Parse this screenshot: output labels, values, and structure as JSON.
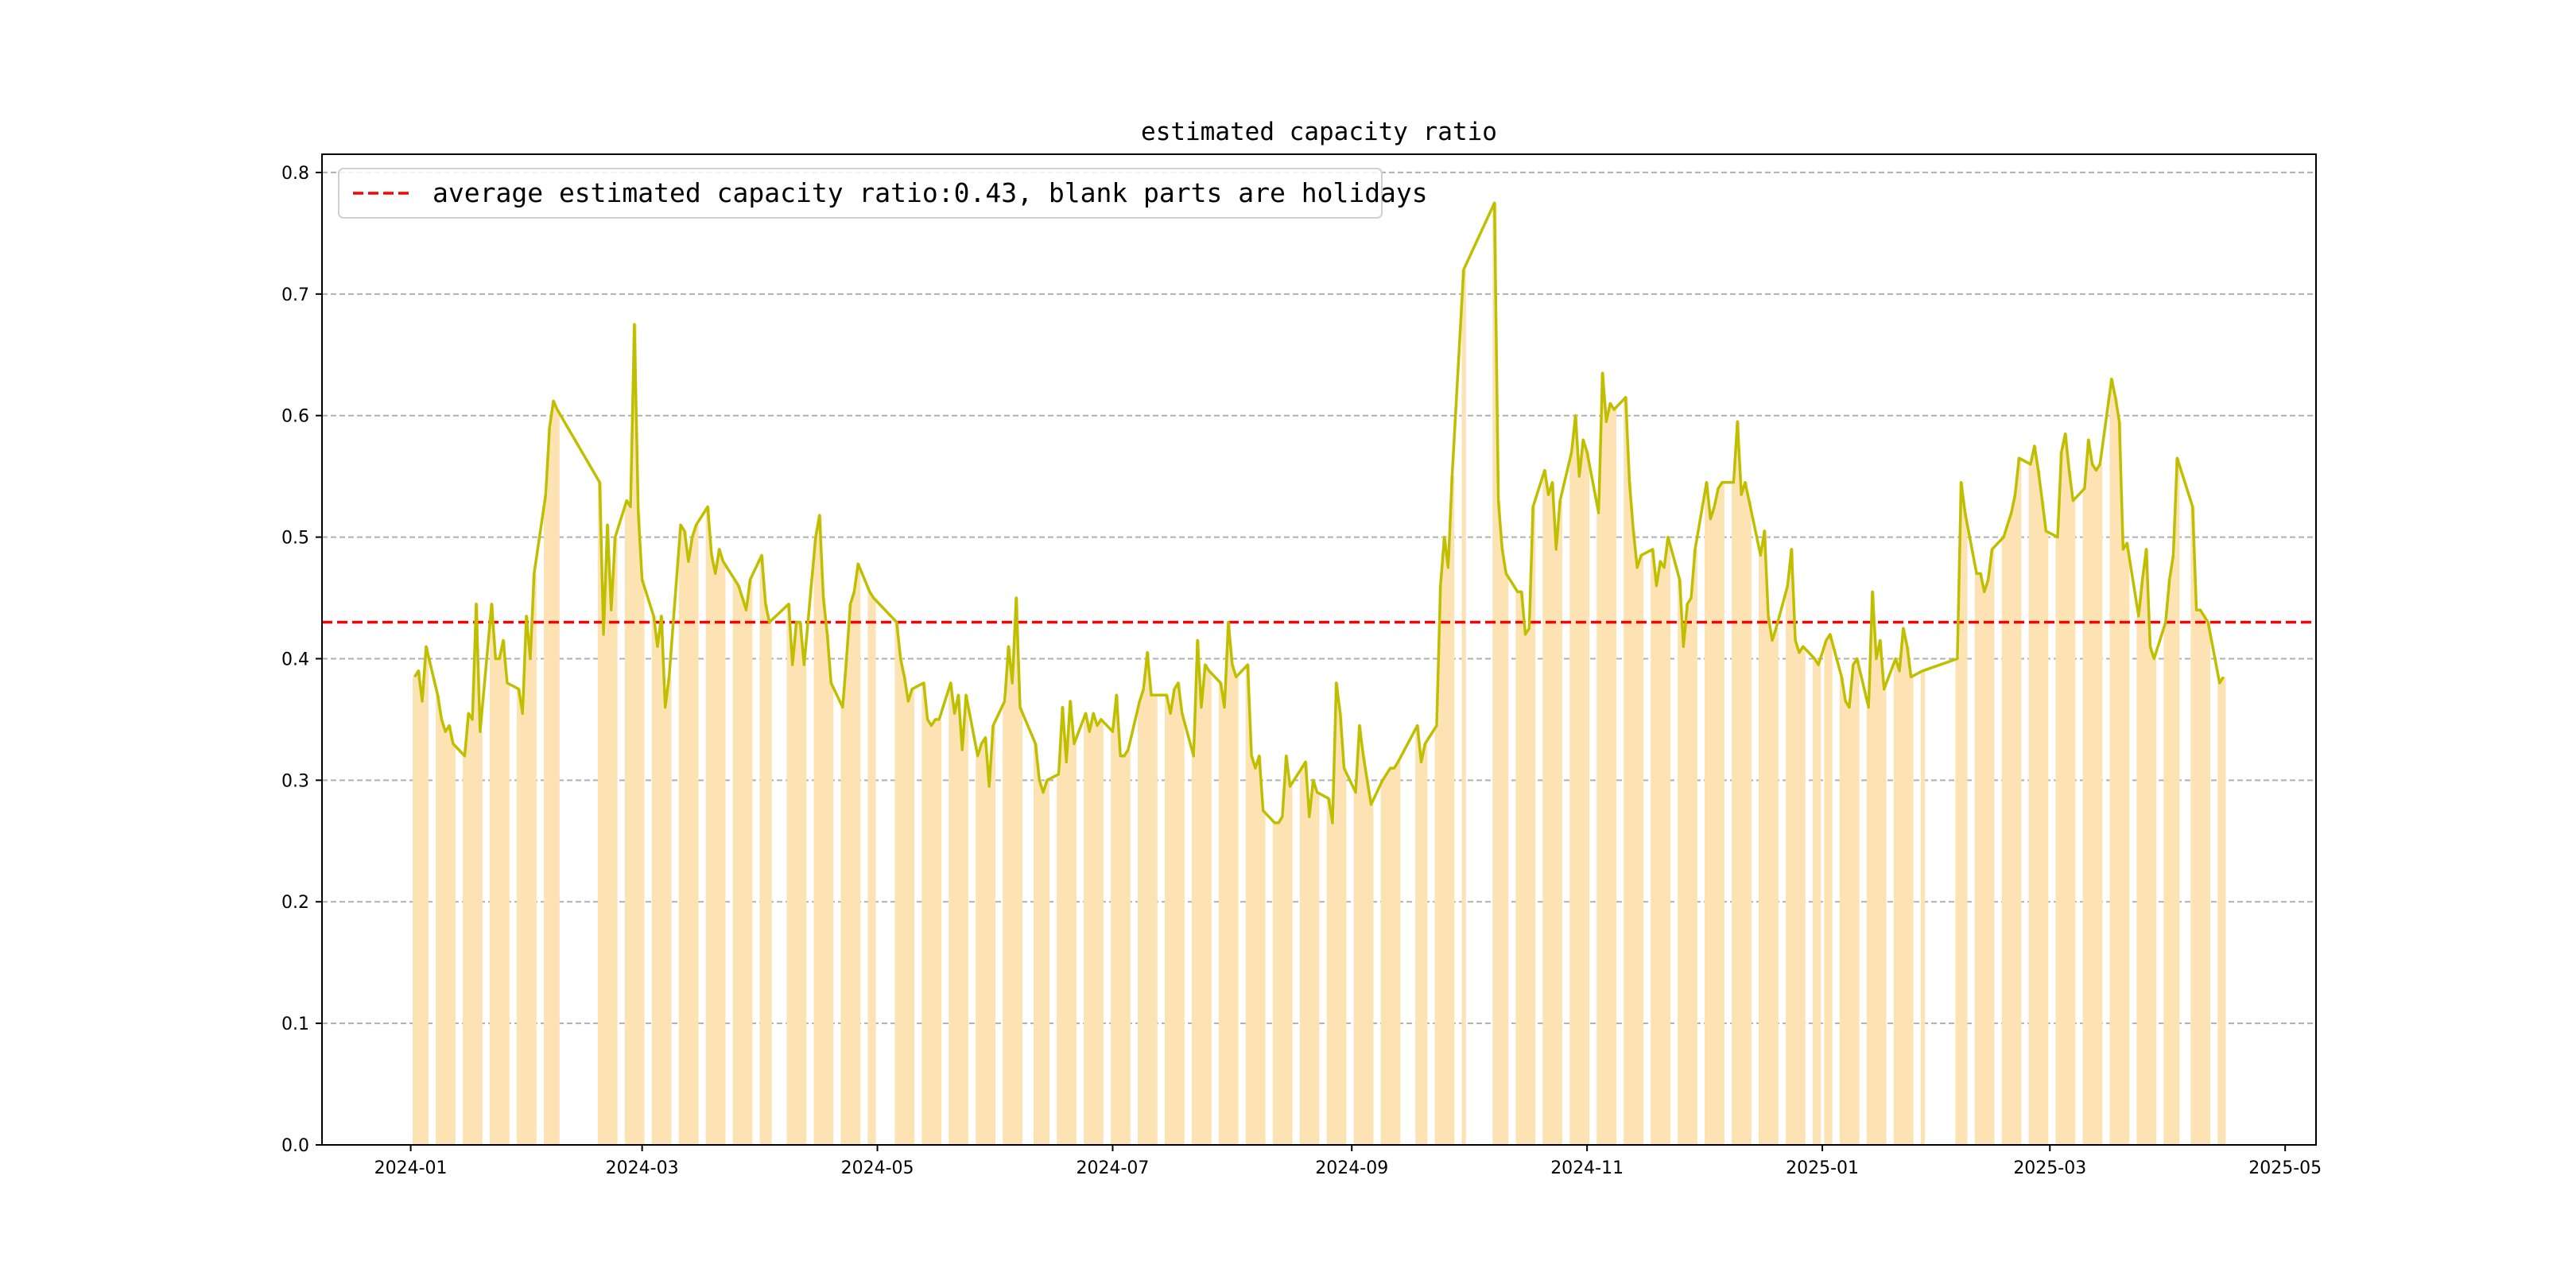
{
  "chart_data": {
    "type": "bar+line",
    "title": "estimated capacity ratio",
    "xlabel": "",
    "ylabel": "",
    "ylim": [
      0,
      0.815
    ],
    "xlim": [
      "2023-12-09",
      "2025-05-09"
    ],
    "grid": "y-dashed",
    "legend_placement": "top-left",
    "legend": [
      "average estimated capacity ratio:0.43, blank parts are holidays"
    ],
    "average": 0.43,
    "colors": {
      "line": "#bfbf00",
      "bar": "#fde2b4",
      "average": "#ff0000",
      "grid": "#b0b0b0"
    },
    "x_ticks": [
      "2024-01",
      "2024-03",
      "2024-05",
      "2024-07",
      "2024-09",
      "2024-11",
      "2025-01",
      "2025-03",
      "2025-05"
    ],
    "y_ticks": [
      "0.0",
      "0.1",
      "0.2",
      "0.3",
      "0.4",
      "0.5",
      "0.6",
      "0.7",
      "0.8"
    ],
    "series": [
      [
        "2024-01-02",
        0.385
      ],
      [
        "2024-01-03",
        0.39
      ],
      [
        "2024-01-04",
        0.365
      ],
      [
        "2024-01-05",
        0.41
      ],
      [
        "2024-01-08",
        0.37
      ],
      [
        "2024-01-09",
        0.35
      ],
      [
        "2024-01-10",
        0.34
      ],
      [
        "2024-01-11",
        0.345
      ],
      [
        "2024-01-12",
        0.33
      ],
      [
        "2024-01-15",
        0.32
      ],
      [
        "2024-01-16",
        0.355
      ],
      [
        "2024-01-17",
        0.35
      ],
      [
        "2024-01-18",
        0.445
      ],
      [
        "2024-01-19",
        0.34
      ],
      [
        "2024-01-22",
        0.445
      ],
      [
        "2024-01-23",
        0.4
      ],
      [
        "2024-01-24",
        0.4
      ],
      [
        "2024-01-25",
        0.415
      ],
      [
        "2024-01-26",
        0.38
      ],
      [
        "2024-01-29",
        0.375
      ],
      [
        "2024-01-30",
        0.355
      ],
      [
        "2024-01-31",
        0.435
      ],
      [
        "2024-02-01",
        0.4
      ],
      [
        "2024-02-02",
        0.47
      ],
      [
        "2024-02-05",
        0.535
      ],
      [
        "2024-02-06",
        0.59
      ],
      [
        "2024-02-07",
        0.612
      ],
      [
        "2024-02-08",
        0.605
      ],
      [
        "2024-02-19",
        0.545
      ],
      [
        "2024-02-20",
        0.42
      ],
      [
        "2024-02-21",
        0.51
      ],
      [
        "2024-02-22",
        0.44
      ],
      [
        "2024-02-23",
        0.5
      ],
      [
        "2024-02-26",
        0.53
      ],
      [
        "2024-02-27",
        0.525
      ],
      [
        "2024-02-28",
        0.675
      ],
      [
        "2024-02-29",
        0.52
      ],
      [
        "2024-03-01",
        0.465
      ],
      [
        "2024-03-04",
        0.435
      ],
      [
        "2024-03-05",
        0.41
      ],
      [
        "2024-03-06",
        0.435
      ],
      [
        "2024-03-07",
        0.36
      ],
      [
        "2024-03-08",
        0.385
      ],
      [
        "2024-03-11",
        0.51
      ],
      [
        "2024-03-12",
        0.505
      ],
      [
        "2024-03-13",
        0.48
      ],
      [
        "2024-03-14",
        0.5
      ],
      [
        "2024-03-15",
        0.51
      ],
      [
        "2024-03-18",
        0.525
      ],
      [
        "2024-03-19",
        0.485
      ],
      [
        "2024-03-20",
        0.47
      ],
      [
        "2024-03-21",
        0.49
      ],
      [
        "2024-03-22",
        0.48
      ],
      [
        "2024-03-25",
        0.465
      ],
      [
        "2024-03-26",
        0.46
      ],
      [
        "2024-03-27",
        0.45
      ],
      [
        "2024-03-28",
        0.44
      ],
      [
        "2024-03-29",
        0.465
      ],
      [
        "2024-04-01",
        0.485
      ],
      [
        "2024-04-02",
        0.445
      ],
      [
        "2024-04-03",
        0.43
      ],
      [
        "2024-04-08",
        0.445
      ],
      [
        "2024-04-09",
        0.395
      ],
      [
        "2024-04-10",
        0.43
      ],
      [
        "2024-04-11",
        0.43
      ],
      [
        "2024-04-12",
        0.395
      ],
      [
        "2024-04-15",
        0.5
      ],
      [
        "2024-04-16",
        0.518
      ],
      [
        "2024-04-17",
        0.45
      ],
      [
        "2024-04-18",
        0.42
      ],
      [
        "2024-04-19",
        0.38
      ],
      [
        "2024-04-22",
        0.36
      ],
      [
        "2024-04-23",
        0.4
      ],
      [
        "2024-04-24",
        0.445
      ],
      [
        "2024-04-25",
        0.455
      ],
      [
        "2024-04-26",
        0.478
      ],
      [
        "2024-04-29",
        0.455
      ],
      [
        "2024-04-30",
        0.45
      ],
      [
        "2024-05-06",
        0.43
      ],
      [
        "2024-05-07",
        0.4
      ],
      [
        "2024-05-08",
        0.385
      ],
      [
        "2024-05-09",
        0.365
      ],
      [
        "2024-05-10",
        0.375
      ],
      [
        "2024-05-13",
        0.38
      ],
      [
        "2024-05-14",
        0.35
      ],
      [
        "2024-05-15",
        0.345
      ],
      [
        "2024-05-16",
        0.35
      ],
      [
        "2024-05-17",
        0.35
      ],
      [
        "2024-05-20",
        0.38
      ],
      [
        "2024-05-21",
        0.355
      ],
      [
        "2024-05-22",
        0.37
      ],
      [
        "2024-05-23",
        0.325
      ],
      [
        "2024-05-24",
        0.37
      ],
      [
        "2024-05-27",
        0.32
      ],
      [
        "2024-05-28",
        0.33
      ],
      [
        "2024-05-29",
        0.335
      ],
      [
        "2024-05-30",
        0.295
      ],
      [
        "2024-05-31",
        0.345
      ],
      [
        "2024-06-03",
        0.365
      ],
      [
        "2024-06-04",
        0.41
      ],
      [
        "2024-06-05",
        0.38
      ],
      [
        "2024-06-06",
        0.45
      ],
      [
        "2024-06-07",
        0.36
      ],
      [
        "2024-06-11",
        0.33
      ],
      [
        "2024-06-12",
        0.3
      ],
      [
        "2024-06-13",
        0.29
      ],
      [
        "2024-06-14",
        0.3
      ],
      [
        "2024-06-17",
        0.305
      ],
      [
        "2024-06-18",
        0.36
      ],
      [
        "2024-06-19",
        0.315
      ],
      [
        "2024-06-20",
        0.365
      ],
      [
        "2024-06-21",
        0.33
      ],
      [
        "2024-06-24",
        0.355
      ],
      [
        "2024-06-25",
        0.34
      ],
      [
        "2024-06-26",
        0.355
      ],
      [
        "2024-06-27",
        0.345
      ],
      [
        "2024-06-28",
        0.35
      ],
      [
        "2024-07-01",
        0.34
      ],
      [
        "2024-07-02",
        0.37
      ],
      [
        "2024-07-03",
        0.32
      ],
      [
        "2024-07-04",
        0.32
      ],
      [
        "2024-07-05",
        0.325
      ],
      [
        "2024-07-08",
        0.365
      ],
      [
        "2024-07-09",
        0.375
      ],
      [
        "2024-07-10",
        0.405
      ],
      [
        "2024-07-11",
        0.37
      ],
      [
        "2024-07-12",
        0.37
      ],
      [
        "2024-07-15",
        0.37
      ],
      [
        "2024-07-16",
        0.355
      ],
      [
        "2024-07-17",
        0.375
      ],
      [
        "2024-07-18",
        0.38
      ],
      [
        "2024-07-19",
        0.355
      ],
      [
        "2024-07-22",
        0.32
      ],
      [
        "2024-07-23",
        0.415
      ],
      [
        "2024-07-24",
        0.36
      ],
      [
        "2024-07-25",
        0.395
      ],
      [
        "2024-07-26",
        0.39
      ],
      [
        "2024-07-29",
        0.38
      ],
      [
        "2024-07-30",
        0.36
      ],
      [
        "2024-07-31",
        0.43
      ],
      [
        "2024-08-01",
        0.395
      ],
      [
        "2024-08-02",
        0.385
      ],
      [
        "2024-08-05",
        0.395
      ],
      [
        "2024-08-06",
        0.32
      ],
      [
        "2024-08-07",
        0.31
      ],
      [
        "2024-08-08",
        0.32
      ],
      [
        "2024-08-09",
        0.275
      ],
      [
        "2024-08-12",
        0.265
      ],
      [
        "2024-08-13",
        0.265
      ],
      [
        "2024-08-14",
        0.27
      ],
      [
        "2024-08-15",
        0.32
      ],
      [
        "2024-08-16",
        0.295
      ],
      [
        "2024-08-19",
        0.31
      ],
      [
        "2024-08-20",
        0.315
      ],
      [
        "2024-08-21",
        0.27
      ],
      [
        "2024-08-22",
        0.3
      ],
      [
        "2024-08-23",
        0.29
      ],
      [
        "2024-08-26",
        0.285
      ],
      [
        "2024-08-27",
        0.265
      ],
      [
        "2024-08-28",
        0.38
      ],
      [
        "2024-08-29",
        0.355
      ],
      [
        "2024-08-30",
        0.31
      ],
      [
        "2024-09-02",
        0.29
      ],
      [
        "2024-09-03",
        0.345
      ],
      [
        "2024-09-04",
        0.32
      ],
      [
        "2024-09-05",
        0.3
      ],
      [
        "2024-09-06",
        0.28
      ],
      [
        "2024-09-09",
        0.3
      ],
      [
        "2024-09-10",
        0.305
      ],
      [
        "2024-09-11",
        0.31
      ],
      [
        "2024-09-12",
        0.31
      ],
      [
        "2024-09-13",
        0.315
      ],
      [
        "2024-09-18",
        0.345
      ],
      [
        "2024-09-19",
        0.315
      ],
      [
        "2024-09-20",
        0.33
      ],
      [
        "2024-09-23",
        0.345
      ],
      [
        "2024-09-24",
        0.46
      ],
      [
        "2024-09-25",
        0.5
      ],
      [
        "2024-09-26",
        0.475
      ],
      [
        "2024-09-27",
        0.55
      ],
      [
        "2024-09-30",
        0.72
      ],
      [
        "2024-10-08",
        0.775
      ],
      [
        "2024-10-09",
        0.53
      ],
      [
        "2024-10-10",
        0.49
      ],
      [
        "2024-10-11",
        0.47
      ],
      [
        "2024-10-14",
        0.455
      ],
      [
        "2024-10-15",
        0.455
      ],
      [
        "2024-10-16",
        0.42
      ],
      [
        "2024-10-17",
        0.425
      ],
      [
        "2024-10-18",
        0.525
      ],
      [
        "2024-10-21",
        0.555
      ],
      [
        "2024-10-22",
        0.535
      ],
      [
        "2024-10-23",
        0.545
      ],
      [
        "2024-10-24",
        0.49
      ],
      [
        "2024-10-25",
        0.53
      ],
      [
        "2024-10-28",
        0.57
      ],
      [
        "2024-10-29",
        0.6
      ],
      [
        "2024-10-30",
        0.55
      ],
      [
        "2024-10-31",
        0.58
      ],
      [
        "2024-11-01",
        0.57
      ],
      [
        "2024-11-04",
        0.52
      ],
      [
        "2024-11-05",
        0.635
      ],
      [
        "2024-11-06",
        0.595
      ],
      [
        "2024-11-07",
        0.61
      ],
      [
        "2024-11-08",
        0.605
      ],
      [
        "2024-11-11",
        0.615
      ],
      [
        "2024-11-12",
        0.545
      ],
      [
        "2024-11-13",
        0.505
      ],
      [
        "2024-11-14",
        0.475
      ],
      [
        "2024-11-15",
        0.485
      ],
      [
        "2024-11-18",
        0.49
      ],
      [
        "2024-11-19",
        0.46
      ],
      [
        "2024-11-20",
        0.48
      ],
      [
        "2024-11-21",
        0.475
      ],
      [
        "2024-11-22",
        0.5
      ],
      [
        "2024-11-25",
        0.465
      ],
      [
        "2024-11-26",
        0.41
      ],
      [
        "2024-11-27",
        0.445
      ],
      [
        "2024-11-28",
        0.45
      ],
      [
        "2024-11-29",
        0.49
      ],
      [
        "2024-12-02",
        0.545
      ],
      [
        "2024-12-03",
        0.515
      ],
      [
        "2024-12-04",
        0.525
      ],
      [
        "2024-12-05",
        0.54
      ],
      [
        "2024-12-06",
        0.545
      ],
      [
        "2024-12-09",
        0.545
      ],
      [
        "2024-12-10",
        0.595
      ],
      [
        "2024-12-11",
        0.535
      ],
      [
        "2024-12-12",
        0.545
      ],
      [
        "2024-12-13",
        0.53
      ],
      [
        "2024-12-16",
        0.485
      ],
      [
        "2024-12-17",
        0.505
      ],
      [
        "2024-12-18",
        0.435
      ],
      [
        "2024-12-19",
        0.415
      ],
      [
        "2024-12-20",
        0.425
      ],
      [
        "2024-12-23",
        0.46
      ],
      [
        "2024-12-24",
        0.49
      ],
      [
        "2024-12-25",
        0.415
      ],
      [
        "2024-12-26",
        0.405
      ],
      [
        "2024-12-27",
        0.41
      ],
      [
        "2024-12-30",
        0.4
      ],
      [
        "2024-12-31",
        0.395
      ],
      [
        "2025-01-02",
        0.415
      ],
      [
        "2025-01-03",
        0.42
      ],
      [
        "2025-01-06",
        0.385
      ],
      [
        "2025-01-07",
        0.365
      ],
      [
        "2025-01-08",
        0.36
      ],
      [
        "2025-01-09",
        0.395
      ],
      [
        "2025-01-10",
        0.4
      ],
      [
        "2025-01-13",
        0.36
      ],
      [
        "2025-01-14",
        0.455
      ],
      [
        "2025-01-15",
        0.4
      ],
      [
        "2025-01-16",
        0.415
      ],
      [
        "2025-01-17",
        0.375
      ],
      [
        "2025-01-20",
        0.4
      ],
      [
        "2025-01-21",
        0.39
      ],
      [
        "2025-01-22",
        0.425
      ],
      [
        "2025-01-23",
        0.41
      ],
      [
        "2025-01-24",
        0.385
      ],
      [
        "2025-01-27",
        0.39
      ],
      [
        "2025-02-05",
        0.4
      ],
      [
        "2025-02-06",
        0.545
      ],
      [
        "2025-02-07",
        0.52
      ],
      [
        "2025-02-10",
        0.47
      ],
      [
        "2025-02-11",
        0.47
      ],
      [
        "2025-02-12",
        0.455
      ],
      [
        "2025-02-13",
        0.465
      ],
      [
        "2025-02-14",
        0.49
      ],
      [
        "2025-02-17",
        0.5
      ],
      [
        "2025-02-18",
        0.51
      ],
      [
        "2025-02-19",
        0.52
      ],
      [
        "2025-02-20",
        0.535
      ],
      [
        "2025-02-21",
        0.565
      ],
      [
        "2025-02-24",
        0.56
      ],
      [
        "2025-02-25",
        0.575
      ],
      [
        "2025-02-26",
        0.555
      ],
      [
        "2025-02-27",
        0.53
      ],
      [
        "2025-02-28",
        0.505
      ],
      [
        "2025-03-03",
        0.5
      ],
      [
        "2025-03-04",
        0.57
      ],
      [
        "2025-03-05",
        0.585
      ],
      [
        "2025-03-06",
        0.555
      ],
      [
        "2025-03-07",
        0.53
      ],
      [
        "2025-03-10",
        0.54
      ],
      [
        "2025-03-11",
        0.58
      ],
      [
        "2025-03-12",
        0.56
      ],
      [
        "2025-03-13",
        0.555
      ],
      [
        "2025-03-14",
        0.56
      ],
      [
        "2025-03-17",
        0.63
      ],
      [
        "2025-03-18",
        0.615
      ],
      [
        "2025-03-19",
        0.595
      ],
      [
        "2025-03-20",
        0.49
      ],
      [
        "2025-03-21",
        0.495
      ],
      [
        "2025-03-24",
        0.435
      ],
      [
        "2025-03-25",
        0.465
      ],
      [
        "2025-03-26",
        0.49
      ],
      [
        "2025-03-27",
        0.41
      ],
      [
        "2025-03-28",
        0.4
      ],
      [
        "2025-03-31",
        0.43
      ],
      [
        "2025-04-01",
        0.465
      ],
      [
        "2025-04-02",
        0.485
      ],
      [
        "2025-04-03",
        0.565
      ],
      [
        "2025-04-07",
        0.525
      ],
      [
        "2025-04-08",
        0.44
      ],
      [
        "2025-04-09",
        0.44
      ],
      [
        "2025-04-10",
        0.435
      ],
      [
        "2025-04-11",
        0.43
      ],
      [
        "2025-04-14",
        0.38
      ],
      [
        "2025-04-15",
        0.385
      ]
    ]
  }
}
